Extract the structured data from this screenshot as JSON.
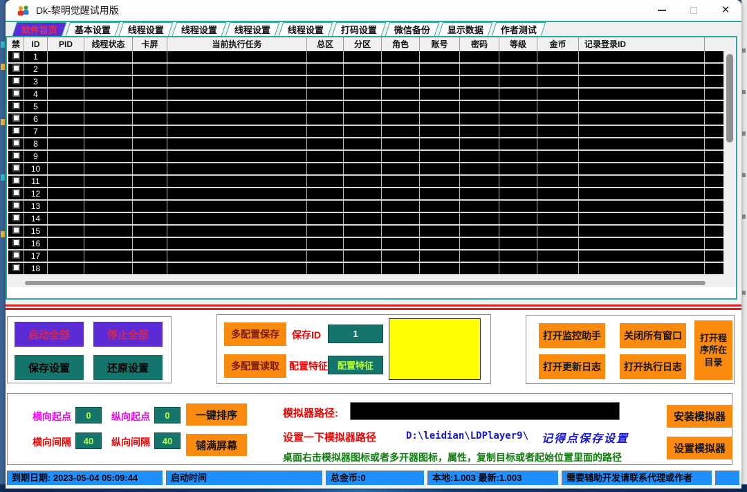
{
  "window": {
    "title": "Dk-黎明觉醒试用版",
    "close_glyph": "×"
  },
  "tabs": [
    {
      "label": "软件首页",
      "selected": true
    },
    {
      "label": "基本设置",
      "selected": false
    },
    {
      "label": "线程设置",
      "selected": false
    },
    {
      "label": "线程设置",
      "selected": false
    },
    {
      "label": "线程设置",
      "selected": false
    },
    {
      "label": "线程设置",
      "selected": false
    },
    {
      "label": "打码设置",
      "selected": false
    },
    {
      "label": "微信备份",
      "selected": false
    },
    {
      "label": "显示数据",
      "selected": false
    },
    {
      "label": "作者测试",
      "selected": false
    }
  ],
  "table": {
    "columns": [
      "禁",
      "ID",
      "PID",
      "线程状态",
      "卡屏",
      "当前执行任务",
      "总区",
      "分区",
      "角色",
      "账号",
      "密码",
      "等级",
      "金币",
      "记录登录ID"
    ],
    "rows": [
      "1",
      "2",
      "3",
      "4",
      "5",
      "6",
      "7",
      "8",
      "9",
      "10",
      "11",
      "12",
      "13",
      "14",
      "15",
      "16",
      "17",
      "18"
    ]
  },
  "control_panel": {
    "start_all": "启动全部",
    "stop_all": "停止全部",
    "save_settings": "保存设置",
    "restore_settings": "还原设置"
  },
  "config_panel": {
    "multi_save": "多配置保存",
    "multi_read": "多配置读取",
    "save_id_label": "保存ID",
    "save_id_value": "1",
    "feature_label": "配置特征",
    "feature_value": "配置特征"
  },
  "tools_panel": {
    "open_monitor": "打开监控助手",
    "close_windows": "关闭所有窗口",
    "open_update_log": "打开更新日志",
    "open_exec_log": "打开执行日志",
    "open_program_dir": "打开程序所在目录"
  },
  "layout_panel": {
    "h_start_label": "横向起点",
    "h_start_value": "0",
    "v_start_label": "纵向起点",
    "v_start_value": "0",
    "h_gap_label": "横向间隔",
    "h_gap_value": "40",
    "v_gap_label": "纵向间隔",
    "v_gap_value": "40",
    "sort_button": "一键排序",
    "fill_button": "铺满屏幕"
  },
  "emulator_panel": {
    "path_label": "模拟器路径:",
    "path_value": "",
    "hint_set_path": "设置一下模拟器路径",
    "example_path": "D:\\leidian\\LDPlayer9\\",
    "hint_save": "记得点保存设置",
    "hint_howto": "桌面右击模拟器图标或者多开器图标，属性，复制目标或者起始位置里面的路径",
    "install_button": "安装模拟器",
    "setup_button": "设置模拟器"
  },
  "status_bar": [
    "到期日期: 2023-05-04 05:09:44",
    "启动时间",
    "总金币:0",
    "本地:1.003  最新:1.003",
    "需要辅助开发请联系代理或作者",
    ""
  ],
  "colors": {
    "accent_teal": "#2fa69e",
    "tab_selected_purple": "#5b2bd6",
    "button_purple": "#5b2bd6",
    "button_teal": "#15746c",
    "button_orange": "#fb8b0e",
    "status_blue": "#1e8fff",
    "highlight_yellow": "#ffff00",
    "alert_red": "#ff0000",
    "label_magenta": "#f500f5",
    "link_blue": "#1717cf",
    "help_green": "#0a7d0a"
  }
}
